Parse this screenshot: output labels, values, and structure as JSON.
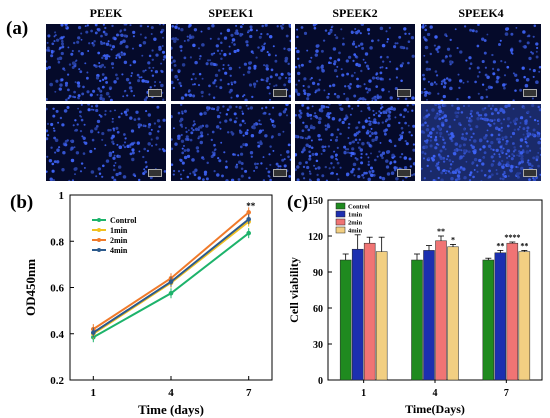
{
  "panel_a": {
    "label": "(a)",
    "columns": [
      "PEEK",
      "SPEEK1",
      "SPEEK2",
      "SPEEK4"
    ]
  },
  "chart_data": [
    {
      "panel": "(b)",
      "type": "line",
      "x": [
        1,
        4,
        7
      ],
      "xlabel": "Time (days)",
      "ylabel": "OD450nm",
      "xticks": [
        "1",
        "4",
        "7"
      ],
      "yticks": [
        "0.2",
        "0.4",
        "0.6",
        "0.8",
        "1"
      ],
      "ylim": [
        0.2,
        1.0
      ],
      "legend": "top-left",
      "series": [
        {
          "name": "Control",
          "values": [
            0.385,
            0.575,
            0.835
          ],
          "color": "#1db36b"
        },
        {
          "name": "1min",
          "values": [
            0.4,
            0.62,
            0.885
          ],
          "color": "#f0c020"
        },
        {
          "name": "2min",
          "values": [
            0.42,
            0.64,
            0.925
          ],
          "color": "#f07a2a"
        },
        {
          "name": "4min",
          "values": [
            0.405,
            0.625,
            0.895
          ],
          "color": "#2c5a8c"
        }
      ],
      "annotations": [
        {
          "x": 7,
          "text": "**"
        }
      ]
    },
    {
      "panel": "(c)",
      "type": "bar",
      "categories": [
        "1",
        "4",
        "7"
      ],
      "xlabel": "Time(Days)",
      "ylabel": "Cell viability",
      "yticks": [
        "0",
        "30",
        "60",
        "90",
        "120",
        "150"
      ],
      "ylim": [
        0,
        150
      ],
      "legend": "top-left",
      "series": [
        {
          "name": "Control",
          "values": [
            100,
            100,
            100
          ],
          "errors": [
            5,
            5,
            1.5
          ],
          "color": "#1f8a1f",
          "labels": [
            "",
            "",
            ""
          ]
        },
        {
          "name": "1min",
          "values": [
            109,
            108,
            106
          ],
          "errors": [
            12,
            4,
            2
          ],
          "color": "#1c2fb0",
          "labels": [
            "",
            "",
            "**"
          ]
        },
        {
          "name": "2min",
          "values": [
            114,
            116,
            114
          ],
          "errors": [
            5,
            4,
            1
          ],
          "color": "#f07474",
          "labels": [
            "",
            "**",
            "****"
          ]
        },
        {
          "name": "4min",
          "values": [
            107,
            111,
            107
          ],
          "errors": [
            12,
            2,
            1
          ],
          "color": "#f2cf82",
          "labels": [
            "",
            "*",
            "**"
          ]
        }
      ]
    }
  ]
}
